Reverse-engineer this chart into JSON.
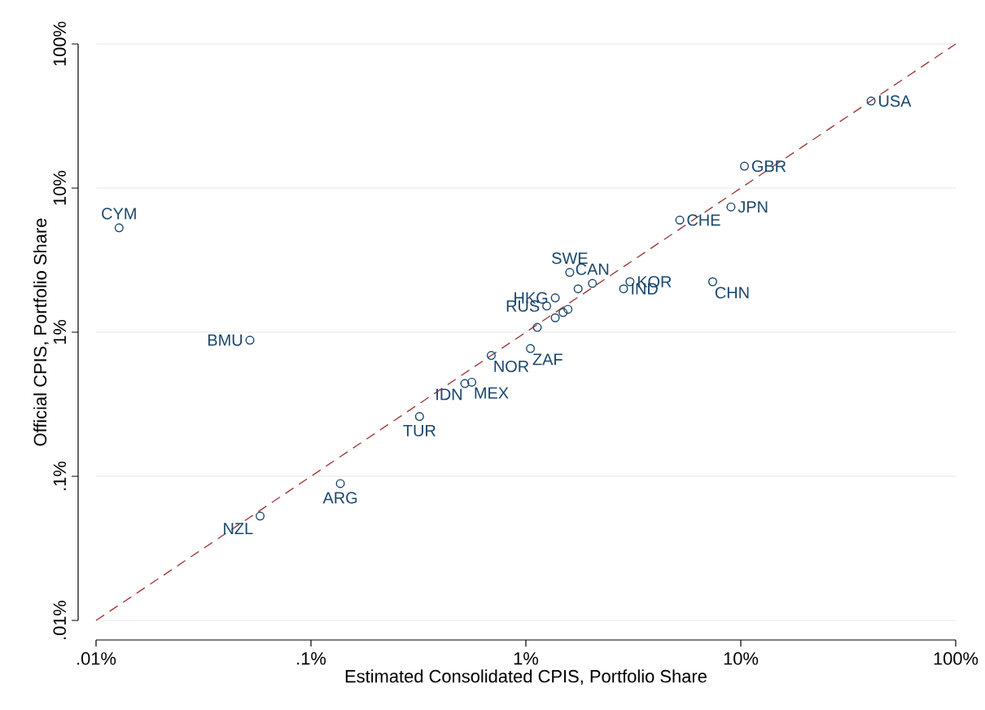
{
  "chart_data": {
    "type": "scatter",
    "xlabel": "Estimated Consolidated CPIS, Portfolio Share",
    "ylabel": "Official CPIS, Portfolio Share",
    "log": "xy",
    "grid": "y",
    "xlim": [
      0.01,
      100
    ],
    "ylim": [
      0.01,
      100
    ],
    "xticks": [
      {
        "value": 0.01,
        "label": ".01%"
      },
      {
        "value": 0.1,
        "label": ".1%"
      },
      {
        "value": 1,
        "label": "1%"
      },
      {
        "value": 10,
        "label": "10%"
      },
      {
        "value": 100,
        "label": "100%"
      }
    ],
    "yticks": [
      {
        "value": 0.01,
        "label": ".01%"
      },
      {
        "value": 0.1,
        "label": ".1%"
      },
      {
        "value": 1,
        "label": "1%"
      },
      {
        "value": 10,
        "label": "10%"
      },
      {
        "value": 100,
        "label": "100%"
      }
    ],
    "series": [
      {
        "color": "#1a476f",
        "marker": "circle",
        "x": [
          40.4,
          10.4,
          9.0,
          5.2,
          7.4,
          3.05,
          2.85,
          0.0128,
          0.052,
          0.058,
          0.137,
          0.32,
          0.52,
          0.56,
          0.69,
          1.05,
          1.6,
          2.04,
          1.37,
          1.25,
          1.13,
          1.37,
          1.49,
          1.57,
          1.75
        ],
        "values": [
          40.2,
          14.2,
          7.4,
          6.0,
          2.24,
          2.24,
          2.0,
          5.3,
          0.88,
          0.053,
          0.089,
          0.26,
          0.44,
          0.45,
          0.69,
          0.77,
          2.6,
          2.18,
          1.73,
          1.52,
          1.08,
          1.26,
          1.37,
          1.44,
          2.0
        ]
      },
      {
        "type": "line",
        "color": "#a0393a",
        "line_style": "dashed",
        "marker": "none",
        "x": [
          0.01,
          100
        ],
        "values": [
          0.01,
          100
        ]
      }
    ],
    "annotations": [
      {
        "text": "USA",
        "x": 40.4,
        "y": 40.2
      },
      {
        "text": "GBR",
        "x": 10.4,
        "y": 14.2
      },
      {
        "text": "JPN",
        "x": 9.0,
        "y": 7.4
      },
      {
        "text": "CHE",
        "x": 5.2,
        "y": 6.0
      },
      {
        "text": "CHN",
        "x": 7.4,
        "y": 2.24
      },
      {
        "text": "KOR",
        "x": 3.05,
        "y": 2.24
      },
      {
        "text": "IND",
        "x": 2.85,
        "y": 2.0
      },
      {
        "text": "CYM",
        "x": 0.0128,
        "y": 5.3
      },
      {
        "text": "BMU",
        "x": 0.052,
        "y": 0.88
      },
      {
        "text": "NZL",
        "x": 0.058,
        "y": 0.053
      },
      {
        "text": "ARG",
        "x": 0.137,
        "y": 0.089
      },
      {
        "text": "TUR",
        "x": 0.32,
        "y": 0.26
      },
      {
        "text": "IDN",
        "x": 0.52,
        "y": 0.44
      },
      {
        "text": "MEX",
        "x": 0.56,
        "y": 0.45
      },
      {
        "text": "NOR",
        "x": 0.69,
        "y": 0.69
      },
      {
        "text": "ZAF",
        "x": 1.05,
        "y": 0.77
      },
      {
        "text": "SWE",
        "x": 1.6,
        "y": 2.6
      },
      {
        "text": "CAN",
        "x": 2.04,
        "y": 2.18
      },
      {
        "text": "HKG",
        "x": 1.37,
        "y": 1.73
      },
      {
        "text": "RUS",
        "x": 1.25,
        "y": 1.52
      }
    ]
  }
}
